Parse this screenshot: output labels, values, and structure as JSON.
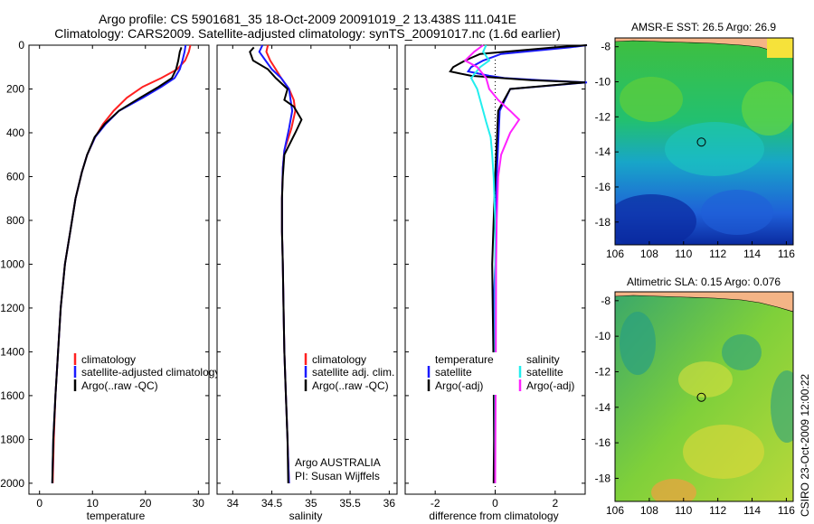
{
  "header": {
    "line1": "Argo profile: CS 5901681_35 18-Oct-2009 20091019_2 13.438S 111.041E",
    "line2": "Climatology: CARS2009. Satellite-adjusted climatology: synTS_20091017.nc (1.6d earlier)"
  },
  "footer": {
    "vertical_text": "CSIRO 23-Oct-2009 12:00:22"
  },
  "colors": {
    "climatology": "#ff2020",
    "satellite": "#1a1aff",
    "argo": "#000000",
    "salinity_satellite": "#22eeee",
    "salinity_argo": "#ff22ff",
    "land": "#f4b486"
  },
  "chart_data": [
    {
      "id": "temperature",
      "type": "line",
      "xlabel": "temperature",
      "ylabel": "",
      "xlim": [
        -2,
        32
      ],
      "ylim": [
        2050,
        0
      ],
      "xticks": [
        0,
        10,
        20,
        30
      ],
      "yticks": [
        0,
        200,
        400,
        600,
        800,
        1000,
        1200,
        1400,
        1600,
        1800,
        2000
      ],
      "legend": [
        {
          "label": "climatology",
          "series": "climatology"
        },
        {
          "label": "satellite-adjusted climatology",
          "series": "satellite"
        },
        {
          "label": "Argo(..raw -QC)",
          "series": "argo"
        }
      ],
      "series": [
        {
          "key": "climatology",
          "name": "climatology",
          "x": [
            28.5,
            28.2,
            27.5,
            26.0,
            23.0,
            19.5,
            16.5,
            14.0,
            12.0,
            10.5,
            9.0,
            8.0,
            6.8,
            5.8,
            4.8,
            4.0,
            3.5,
            3.0,
            2.7,
            2.5
          ],
          "y": [
            0,
            30,
            70,
            110,
            150,
            190,
            240,
            300,
            360,
            420,
            500,
            580,
            700,
            850,
            1000,
            1200,
            1400,
            1600,
            1800,
            2000
          ]
        },
        {
          "key": "satellite",
          "name": "satellite-adjusted climatology",
          "x": [
            27.6,
            27.4,
            27.0,
            26.5,
            25.5,
            23.0,
            19.5,
            15.0,
            12.5,
            10.5,
            9.0,
            8.0,
            6.8,
            5.8,
            4.8,
            4.0,
            3.5,
            3.0,
            2.6,
            2.4
          ],
          "y": [
            0,
            30,
            70,
            110,
            150,
            190,
            240,
            300,
            360,
            420,
            500,
            580,
            700,
            850,
            1000,
            1200,
            1400,
            1600,
            1800,
            2000
          ]
        },
        {
          "key": "argo",
          "name": "Argo(..raw -QC)",
          "x": [
            26.8,
            26.5,
            26.2,
            25.8,
            25.0,
            22.5,
            19.0,
            15.0,
            12.3,
            10.4,
            9.0,
            8.0,
            6.8,
            5.8,
            4.8,
            4.0,
            3.5,
            3.0,
            2.6,
            2.4
          ],
          "y": [
            10,
            30,
            70,
            110,
            150,
            190,
            240,
            300,
            360,
            420,
            500,
            580,
            700,
            850,
            1000,
            1200,
            1400,
            1600,
            1800,
            2000
          ]
        }
      ]
    },
    {
      "id": "salinity",
      "type": "line",
      "xlabel": "salinity",
      "ylabel": "",
      "xlim": [
        33.8,
        36.1
      ],
      "ylim": [
        2050,
        0
      ],
      "xticks": [
        34,
        34.5,
        35,
        35.5,
        36
      ],
      "xticklabels": [
        "34",
        "34.5",
        "35",
        "35.5",
        "36"
      ],
      "legend": [
        {
          "label": "climatology",
          "series": "climatology"
        },
        {
          "label": "satellite adj. clim.",
          "series": "satellite"
        },
        {
          "label": "Argo(..raw -QC)",
          "series": "argo"
        }
      ],
      "annotations": [
        "Argo AUSTRALIA",
        "PI: Susan Wijffels"
      ],
      "series": [
        {
          "key": "climatology",
          "name": "climatology",
          "x": [
            34.45,
            34.43,
            34.48,
            34.55,
            34.62,
            34.72,
            34.78,
            34.8,
            34.75,
            34.66,
            34.64,
            34.63,
            34.63,
            34.64,
            34.65,
            34.66,
            34.68,
            34.7,
            34.71,
            34.72
          ],
          "y": [
            0,
            30,
            70,
            110,
            150,
            200,
            250,
            300,
            380,
            480,
            560,
            700,
            850,
            1000,
            1200,
            1400,
            1600,
            1800,
            1900,
            2000
          ]
        },
        {
          "key": "satellite",
          "name": "satellite adj. clim.",
          "x": [
            34.38,
            34.34,
            34.42,
            34.5,
            34.62,
            34.72,
            34.74,
            34.76,
            34.72,
            34.66,
            34.64,
            34.63,
            34.63,
            34.64,
            34.65,
            34.66,
            34.68,
            34.7,
            34.71,
            34.72
          ],
          "y": [
            0,
            30,
            70,
            110,
            150,
            200,
            250,
            300,
            380,
            480,
            560,
            700,
            850,
            1000,
            1200,
            1400,
            1600,
            1800,
            1900,
            2000
          ]
        },
        {
          "key": "argo",
          "name": "Argo(..raw -QC)",
          "x": [
            34.27,
            34.22,
            34.26,
            34.45,
            34.55,
            34.7,
            34.66,
            34.78,
            34.88,
            34.8,
            34.66,
            34.64,
            34.63,
            34.63,
            34.64,
            34.65,
            34.66,
            34.68,
            34.7,
            34.71
          ],
          "y": [
            10,
            30,
            70,
            110,
            150,
            200,
            250,
            280,
            340,
            400,
            500,
            600,
            700,
            850,
            1000,
            1200,
            1400,
            1600,
            1800,
            2000
          ]
        }
      ]
    },
    {
      "id": "difference",
      "type": "line",
      "xlabel": "difference from climatology",
      "ylabel": "",
      "xlim": [
        -3,
        3
      ],
      "ylim": [
        2050,
        0
      ],
      "xticks": [
        -2,
        0,
        2
      ],
      "legend_groups": [
        {
          "title": "temperature",
          "entries": [
            {
              "label": "satellite",
              "series": "t_sat"
            },
            {
              "label": "Argo(-adj)",
              "series": "t_argo"
            }
          ]
        },
        {
          "title": "salinity",
          "entries": [
            {
              "label": "satellite",
              "series": "s_sat"
            },
            {
              "label": "Argo(-adj)",
              "series": "s_argo"
            }
          ]
        }
      ],
      "series": [
        {
          "key": "t_sat",
          "name": "temperature satellite",
          "x": [
            3.6,
            2.5,
            0.2,
            -0.4,
            -0.8,
            -0.9,
            -0.2,
            0.3,
            1.5,
            3.4,
            0.5,
            0.15,
            0.1,
            0.05,
            0.02,
            0.0,
            -0.05,
            -0.03,
            -0.02,
            0.0
          ],
          "y": [
            0,
            10,
            40,
            70,
            100,
            120,
            140,
            150,
            160,
            170,
            200,
            300,
            450,
            600,
            800,
            1000,
            1200,
            1500,
            1800,
            2000
          ]
        },
        {
          "key": "t_argo",
          "name": "temperature Argo(-adj)",
          "x": [
            3.6,
            2.0,
            -0.5,
            -1.0,
            -1.4,
            -1.5,
            -0.8,
            0.2,
            1.2,
            3.0,
            0.5,
            0.1,
            0.05,
            0.0,
            -0.05,
            -0.1,
            -0.08,
            -0.05,
            -0.04,
            -0.05
          ],
          "y": [
            0,
            10,
            40,
            70,
            100,
            120,
            140,
            150,
            160,
            170,
            200,
            300,
            450,
            600,
            800,
            1000,
            1200,
            1500,
            1800,
            2000
          ]
        },
        {
          "key": "s_sat",
          "name": "salinity satellite",
          "x": [
            -0.3,
            -0.4,
            -0.2,
            -0.5,
            -0.8,
            -0.6,
            -0.5,
            -0.4,
            -0.3,
            -0.15,
            -0.1,
            -0.05,
            0.0,
            0.0,
            0.0,
            0.0,
            0.0
          ],
          "y": [
            0,
            30,
            70,
            100,
            150,
            200,
            250,
            300,
            350,
            420,
            500,
            600,
            800,
            1000,
            1400,
            1800,
            2000
          ]
        },
        {
          "key": "s_argo",
          "name": "salinity Argo(-adj)",
          "x": [
            -0.4,
            -0.7,
            -1.0,
            -0.6,
            -0.3,
            -0.2,
            0.1,
            0.5,
            0.8,
            0.5,
            0.2,
            0.1,
            0.05,
            0.03,
            0.02,
            0.0
          ],
          "y": [
            0,
            30,
            70,
            100,
            150,
            200,
            250,
            300,
            340,
            400,
            500,
            600,
            800,
            1000,
            1400,
            2000
          ]
        }
      ]
    },
    {
      "id": "sst_map",
      "type": "heatmap",
      "title": "AMSR-E SST: 26.5 Argo: 26.9",
      "xlim": [
        106,
        116.4
      ],
      "ylim": [
        -19.3,
        -7.5
      ],
      "xticks": [
        106,
        108,
        110,
        112,
        114,
        116
      ],
      "yticks": [
        -8,
        -10,
        -12,
        -14,
        -16,
        -18
      ],
      "marker": {
        "lon": 111.041,
        "lat": -13.438
      }
    },
    {
      "id": "sla_map",
      "type": "heatmap",
      "title": "Altimetric SLA: 0.15 Argo: 0.076",
      "xlim": [
        106,
        116.4
      ],
      "ylim": [
        -19.3,
        -7.5
      ],
      "xticks": [
        106,
        108,
        110,
        112,
        114,
        116
      ],
      "yticks": [
        -8,
        -10,
        -12,
        -14,
        -16,
        -18
      ],
      "marker": {
        "lon": 111.041,
        "lat": -13.438
      }
    }
  ]
}
